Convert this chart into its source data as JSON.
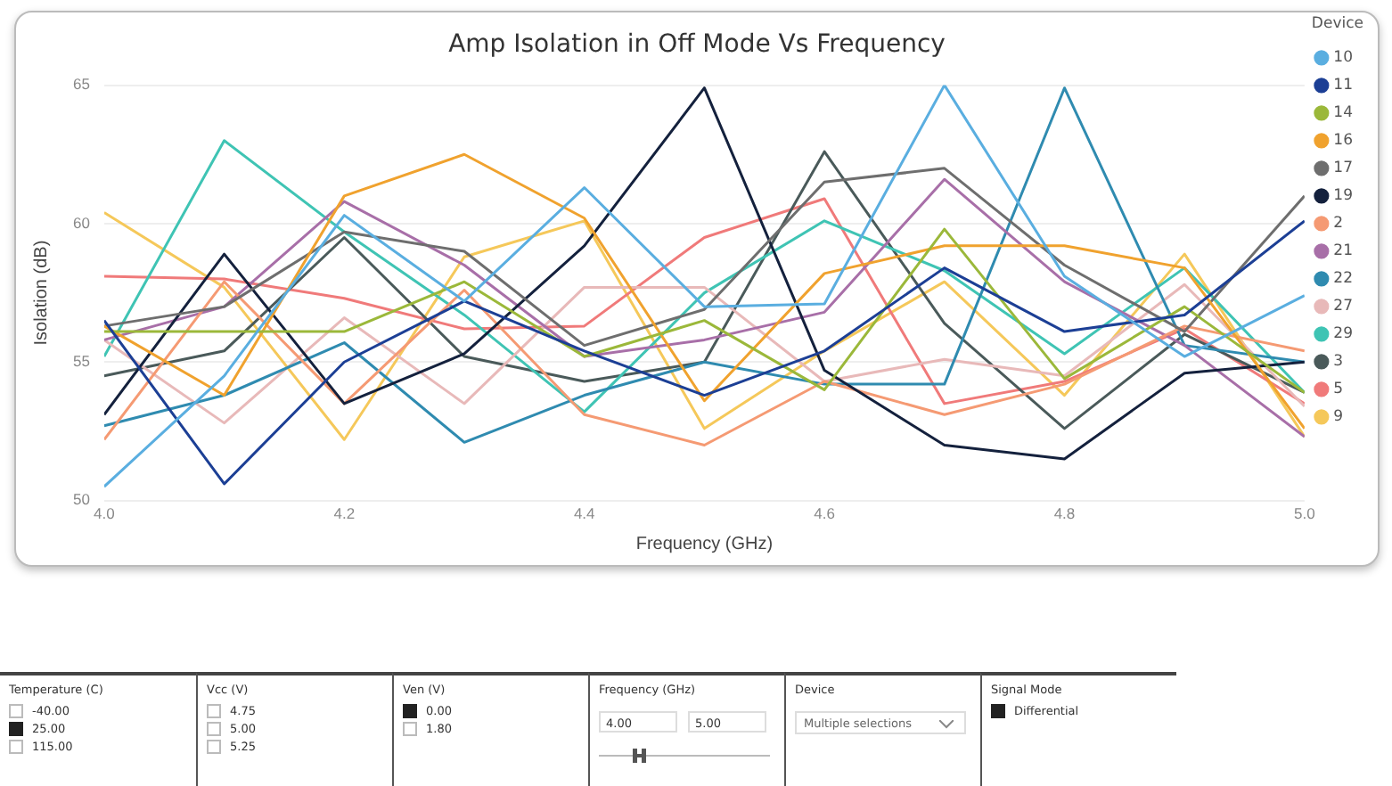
{
  "chart_data": [
    {
      "type": "line",
      "title": "Amp Isolation in Off Mode Vs Frequency",
      "xlabel": "Frequency (GHz)",
      "ylabel": "Isolation (dB)",
      "legend_title": "Device",
      "legend": "right",
      "grid": "y",
      "marker": "none",
      "line_style": "solid",
      "x": [
        4.0,
        4.1,
        4.2,
        4.3,
        4.4,
        4.5,
        4.6,
        4.7,
        4.8,
        4.9,
        5.0
      ],
      "xlim": [
        4,
        5
      ],
      "xticks": [
        {
          "value": 4,
          "label": "4.0"
        },
        {
          "value": 4.2,
          "label": "4.2"
        },
        {
          "value": 4.4,
          "label": "4.4"
        },
        {
          "value": 4.6,
          "label": "4.6"
        },
        {
          "value": 4.8,
          "label": "4.8"
        },
        {
          "value": 5,
          "label": "5.0"
        }
      ],
      "ylim": [
        50,
        65
      ],
      "yticks": [
        50,
        55,
        60,
        65
      ],
      "series": [
        {
          "name": "10",
          "color": "#5aaee0",
          "values": [
            50.5,
            54.5,
            60.3,
            57.2,
            61.3,
            57.0,
            57.1,
            65.0,
            58.1,
            55.2,
            57.4
          ]
        },
        {
          "name": "11",
          "color": "#1c3f95",
          "values": [
            56.5,
            50.6,
            55.0,
            57.2,
            55.4,
            53.8,
            55.4,
            58.4,
            56.1,
            56.7,
            60.1
          ]
        },
        {
          "name": "14",
          "color": "#9bb83a",
          "values": [
            56.1,
            56.1,
            56.1,
            57.9,
            55.2,
            56.5,
            54.0,
            59.8,
            54.4,
            57.0,
            53.9
          ]
        },
        {
          "name": "16",
          "color": "#f0a22e",
          "values": [
            56.3,
            53.8,
            61.0,
            62.5,
            60.2,
            53.6,
            58.2,
            59.2,
            59.2,
            58.4,
            52.6
          ]
        },
        {
          "name": "17",
          "color": "#6e6e6e",
          "values": [
            56.3,
            57.0,
            59.7,
            59.0,
            55.6,
            56.9,
            61.5,
            62.0,
            58.5,
            56.1,
            61.0
          ]
        },
        {
          "name": "19",
          "color": "#14213d",
          "values": [
            53.1,
            58.9,
            53.5,
            55.3,
            59.2,
            64.9,
            54.7,
            52.0,
            51.5,
            54.6,
            55.0
          ]
        },
        {
          "name": "2",
          "color": "#f59a73",
          "values": [
            52.2,
            57.9,
            53.5,
            57.6,
            53.1,
            52.0,
            54.3,
            53.1,
            54.2,
            56.3,
            55.4
          ]
        },
        {
          "name": "21",
          "color": "#a86fa8",
          "values": [
            55.8,
            57.0,
            60.8,
            58.5,
            55.2,
            55.8,
            56.8,
            61.6,
            57.9,
            55.6,
            52.3
          ]
        },
        {
          "name": "22",
          "color": "#2f8bb0",
          "values": [
            52.7,
            53.8,
            55.7,
            52.1,
            53.8,
            55.0,
            54.2,
            54.2,
            64.9,
            55.6,
            55.0
          ]
        },
        {
          "name": "27",
          "color": "#e8b9b9",
          "values": [
            55.8,
            52.8,
            56.6,
            53.5,
            57.7,
            57.7,
            54.3,
            55.1,
            54.5,
            57.8,
            53.4
          ]
        },
        {
          "name": "29",
          "color": "#3fc4b4",
          "values": [
            55.2,
            63.0,
            59.7,
            56.7,
            53.2,
            57.5,
            60.1,
            58.3,
            55.3,
            58.4,
            53.9
          ]
        },
        {
          "name": "3",
          "color": "#4a5a5a",
          "values": [
            54.5,
            55.4,
            59.5,
            55.2,
            54.3,
            55.0,
            62.6,
            56.4,
            52.6,
            56.0,
            53.9
          ]
        },
        {
          "name": "5",
          "color": "#f07a7a",
          "values": [
            58.1,
            58.0,
            57.3,
            56.2,
            56.3,
            59.5,
            60.9,
            53.5,
            54.3,
            56.2,
            53.5
          ]
        },
        {
          "name": "9",
          "color": "#f5c85a",
          "values": [
            60.4,
            57.7,
            52.2,
            58.8,
            60.1,
            52.6,
            55.4,
            57.9,
            53.8,
            58.9,
            52.3
          ]
        }
      ]
    },
    {
      "type": "other",
      "title": "Temperature (C)",
      "annotations": [
        "-40.00",
        "25.00",
        "115.00"
      ],
      "colors": [
        "#ffffff",
        "#222222",
        "#ffffff"
      ]
    },
    {
      "type": "other",
      "title": "Vcc (V)",
      "annotations": [
        "4.75",
        "5.00",
        "5.25"
      ],
      "colors": [
        "#ffffff",
        "#ffffff",
        "#ffffff"
      ]
    },
    {
      "type": "other",
      "title": "Ven (V)",
      "annotations": [
        "0.00",
        "1.80"
      ],
      "colors": [
        "#222222",
        "#ffffff"
      ]
    },
    {
      "type": "other",
      "title": "Frequency (GHz)",
      "annotations": [
        "4.00",
        "5.00"
      ]
    },
    {
      "type": "other",
      "title": "Device",
      "annotations": [
        "Multiple selections"
      ]
    },
    {
      "type": "other",
      "title": "Signal Mode",
      "annotations": [
        "Differential"
      ],
      "colors": [
        "#222222"
      ]
    }
  ]
}
